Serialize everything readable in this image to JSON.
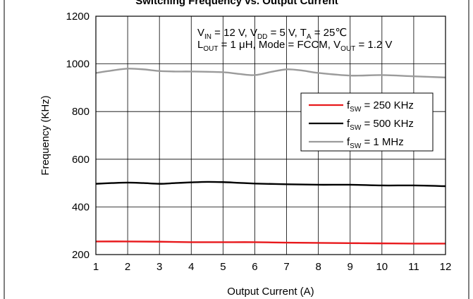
{
  "chart_data": {
    "type": "line",
    "title": "",
    "xlabel": "Output Current (A)",
    "ylabel": "Frequency (KHz)",
    "xlim": [
      1,
      12
    ],
    "ylim": [
      200,
      1200
    ],
    "x_ticks": [
      1,
      2,
      3,
      4,
      5,
      6,
      7,
      8,
      9,
      10,
      11,
      12
    ],
    "y_ticks": [
      200,
      400,
      600,
      800,
      1000,
      1200
    ],
    "grid": true,
    "legend_position": "right",
    "conditions": {
      "line1": {
        "vin_label": "V",
        "vin_sub": "IN",
        "vin_value": " = 12 V, ",
        "vdd_label": "V",
        "vdd_sub": "DD",
        "vdd_value": " = 5 V, ",
        "ta_label": "T",
        "ta_sub": "A",
        "ta_value": " = 25℃"
      },
      "line2": {
        "lout_label": "L",
        "lout_sub": "OUT",
        "lout_value": " = 1 μH, Mode = FCCM, ",
        "vout_label": "V",
        "vout_sub": "OUT",
        "vout_value": " = 1.2 V"
      }
    },
    "series": [
      {
        "name": "f",
        "name_sub": "SW",
        "name_value": " = 250 KHz",
        "color": "#e8191c",
        "x": [
          1,
          2,
          3,
          4,
          5,
          6,
          7,
          8,
          9,
          10,
          11,
          12
        ],
        "y": [
          255,
          255,
          254,
          252,
          252,
          252,
          250,
          249,
          248,
          247,
          246,
          246
        ]
      },
      {
        "name": "f",
        "name_sub": "SW",
        "name_value": " = 500 KHz",
        "color": "#000000",
        "x": [
          1,
          1.5,
          2,
          2.5,
          3,
          3.5,
          4,
          4.5,
          5,
          5.5,
          6,
          7,
          8,
          9,
          10,
          11,
          12
        ],
        "y": [
          497,
          500,
          502,
          500,
          497,
          500,
          503,
          505,
          504,
          501,
          498,
          495,
          493,
          493,
          490,
          490,
          487
        ]
      },
      {
        "name": "f",
        "name_sub": "SW",
        "name_value": " = 1 MHz",
        "color": "#9b9b9b",
        "x": [
          1,
          1.5,
          2,
          2.5,
          3,
          3.5,
          4,
          5,
          5.5,
          6,
          6.5,
          7,
          7.5,
          8,
          9,
          10,
          11,
          12
        ],
        "y": [
          962,
          972,
          980,
          977,
          970,
          968,
          968,
          965,
          958,
          953,
          966,
          977,
          972,
          962,
          951,
          953,
          948,
          943
        ]
      }
    ]
  },
  "page_title": "Switching Frequency vs. Output Current"
}
